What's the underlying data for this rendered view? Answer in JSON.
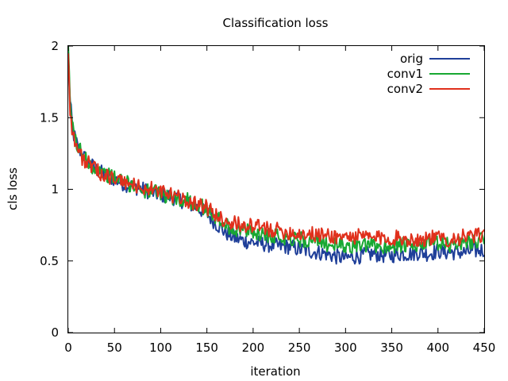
{
  "chart_data": {
    "type": "line",
    "title": "Classification loss",
    "xlabel": "iteration",
    "ylabel": "cls loss",
    "xlim": [
      0,
      450
    ],
    "ylim": [
      0,
      2
    ],
    "xticks": [
      0,
      50,
      100,
      150,
      200,
      250,
      300,
      350,
      400,
      450
    ],
    "yticks": [
      0,
      0.5,
      1,
      1.5,
      2
    ],
    "xtick_labels": [
      "0",
      "50",
      "100",
      "150",
      "200",
      "250",
      "300",
      "350",
      "400",
      "450"
    ],
    "ytick_labels": [
      "0",
      "0.5",
      "1",
      "1.5",
      "2"
    ],
    "legend_position": "top-right",
    "grid": false,
    "series": [
      {
        "name": "orig",
        "color": "#1f3f99",
        "x": [
          0,
          2,
          5,
          10,
          15,
          20,
          25,
          30,
          40,
          50,
          60,
          70,
          80,
          90,
          100,
          110,
          120,
          130,
          140,
          150,
          160,
          170,
          180,
          190,
          200,
          210,
          220,
          230,
          240,
          250,
          260,
          270,
          280,
          290,
          300,
          310,
          320,
          330,
          340,
          350,
          360,
          370,
          380,
          390,
          400,
          410,
          420,
          430,
          440,
          450
        ],
        "y": [
          1.95,
          1.6,
          1.4,
          1.3,
          1.25,
          1.2,
          1.17,
          1.14,
          1.1,
          1.07,
          1.04,
          1.02,
          1.0,
          0.98,
          0.96,
          0.95,
          0.93,
          0.9,
          0.87,
          0.83,
          0.76,
          0.7,
          0.66,
          0.64,
          0.63,
          0.62,
          0.61,
          0.6,
          0.6,
          0.58,
          0.57,
          0.56,
          0.55,
          0.53,
          0.52,
          0.53,
          0.54,
          0.55,
          0.54,
          0.54,
          0.55,
          0.55,
          0.56,
          0.55,
          0.57,
          0.56,
          0.56,
          0.56,
          0.57,
          0.58
        ]
      },
      {
        "name": "conv1",
        "color": "#18a832",
        "x": [
          0,
          2,
          5,
          10,
          15,
          20,
          25,
          30,
          40,
          50,
          60,
          70,
          80,
          90,
          100,
          110,
          120,
          130,
          140,
          150,
          160,
          170,
          180,
          190,
          200,
          210,
          220,
          230,
          240,
          250,
          260,
          270,
          280,
          290,
          300,
          310,
          320,
          330,
          340,
          350,
          360,
          370,
          380,
          390,
          400,
          410,
          420,
          430,
          440,
          450
        ],
        "y": [
          1.95,
          1.62,
          1.42,
          1.3,
          1.25,
          1.2,
          1.17,
          1.14,
          1.11,
          1.08,
          1.05,
          1.03,
          1.0,
          0.98,
          0.97,
          0.95,
          0.93,
          0.92,
          0.9,
          0.86,
          0.8,
          0.75,
          0.72,
          0.71,
          0.7,
          0.69,
          0.68,
          0.67,
          0.66,
          0.65,
          0.64,
          0.63,
          0.62,
          0.61,
          0.6,
          0.61,
          0.6,
          0.61,
          0.6,
          0.61,
          0.61,
          0.6,
          0.61,
          0.62,
          0.62,
          0.61,
          0.62,
          0.63,
          0.64,
          0.65
        ]
      },
      {
        "name": "conv2",
        "color": "#e0301c",
        "x": [
          0,
          2,
          5,
          10,
          15,
          20,
          25,
          30,
          40,
          50,
          60,
          70,
          80,
          90,
          100,
          110,
          120,
          130,
          140,
          150,
          160,
          170,
          180,
          190,
          200,
          210,
          220,
          230,
          240,
          250,
          260,
          270,
          280,
          290,
          300,
          310,
          320,
          330,
          340,
          350,
          360,
          370,
          380,
          390,
          400,
          410,
          420,
          430,
          440,
          450
        ],
        "y": [
          1.98,
          1.55,
          1.38,
          1.28,
          1.22,
          1.19,
          1.16,
          1.13,
          1.1,
          1.07,
          1.05,
          1.03,
          1.01,
          1.0,
          0.98,
          0.96,
          0.94,
          0.92,
          0.9,
          0.87,
          0.82,
          0.78,
          0.76,
          0.75,
          0.74,
          0.73,
          0.72,
          0.71,
          0.7,
          0.69,
          0.69,
          0.68,
          0.68,
          0.67,
          0.67,
          0.67,
          0.67,
          0.66,
          0.66,
          0.66,
          0.66,
          0.65,
          0.65,
          0.66,
          0.66,
          0.65,
          0.66,
          0.67,
          0.67,
          0.68
        ]
      }
    ]
  }
}
